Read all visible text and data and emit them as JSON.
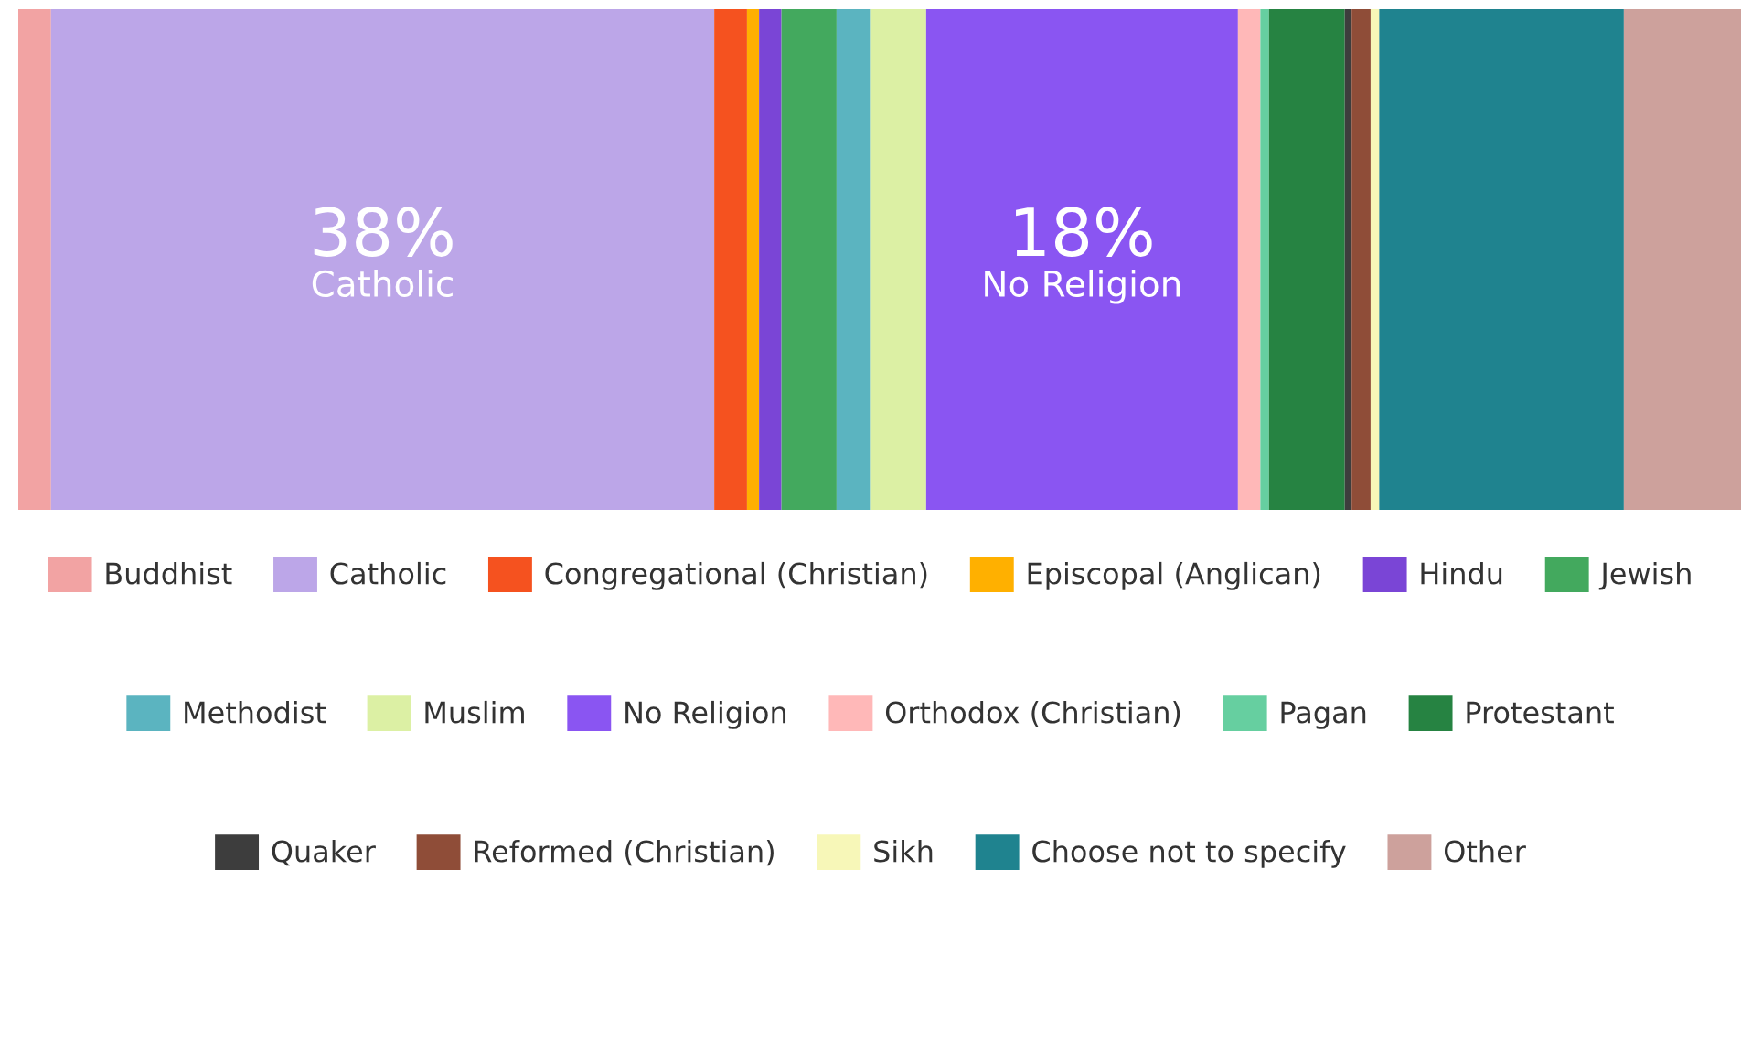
{
  "chart_data": {
    "type": "bar",
    "orientation": "horizontal",
    "stacked": true,
    "categories": [
      null
    ],
    "xlim": [
      0,
      100
    ],
    "tick_labels": false,
    "legend": "bottom",
    "series": [
      {
        "name": "Buddhist",
        "color": "#f2a3a3",
        "values": [
          1.9
        ]
      },
      {
        "name": "Catholic",
        "color": "#bca6e8",
        "values": [
          38.5
        ],
        "value_labels": [
          "38%"
        ]
      },
      {
        "name": "Congregational (Christian)",
        "color": "#f5521f",
        "values": [
          1.9
        ]
      },
      {
        "name": "Episcopal (Anglican)",
        "color": "#ffb000",
        "values": [
          0.7
        ]
      },
      {
        "name": "Hindu",
        "color": "#7a45d6",
        "values": [
          1.3
        ]
      },
      {
        "name": "Jewish",
        "color": "#43a95e",
        "values": [
          3.2
        ]
      },
      {
        "name": "Methodist",
        "color": "#5bb4c0",
        "values": [
          2.0
        ]
      },
      {
        "name": "Muslim",
        "color": "#dcf0a4",
        "values": [
          3.2
        ]
      },
      {
        "name": "No Religion",
        "color": "#8a55f2",
        "values": [
          18.1
        ],
        "value_labels": [
          "18%"
        ]
      },
      {
        "name": "Orthodox (Christian)",
        "color": "#ffb8b8",
        "values": [
          1.3
        ]
      },
      {
        "name": "Pagan",
        "color": "#66cfa0",
        "values": [
          0.5
        ]
      },
      {
        "name": "Protestant",
        "color": "#268342",
        "values": [
          4.4
        ]
      },
      {
        "name": "Quaker",
        "color": "#3d3d3d",
        "values": [
          0.4
        ]
      },
      {
        "name": "Reformed (Christian)",
        "color": "#8f4d38",
        "values": [
          1.1
        ]
      },
      {
        "name": "Sikh",
        "color": "#f7f7b8",
        "values": [
          0.5
        ]
      },
      {
        "name": "Choose not to specify",
        "color": "#1f838f",
        "values": [
          14.2
        ]
      },
      {
        "name": "Other",
        "color": "#cda19c",
        "values": [
          6.8
        ]
      }
    ]
  }
}
